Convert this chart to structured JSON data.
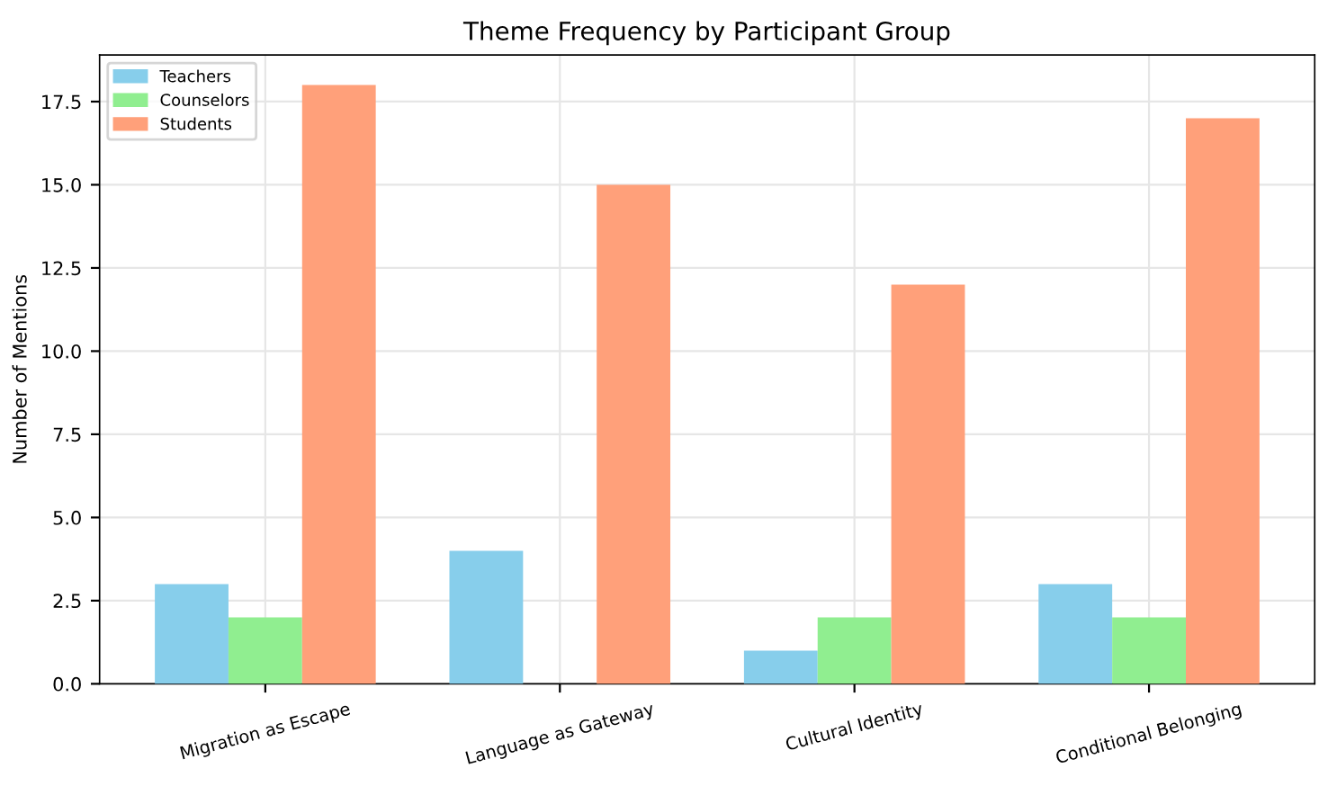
{
  "chart_data": {
    "type": "bar",
    "title": "Theme Frequency by Participant Group",
    "ylabel": "Number of Mentions",
    "categories": [
      "Migration as Escape",
      "Language as Gateway",
      "Cultural Identity",
      "Conditional Belonging"
    ],
    "series": [
      {
        "name": "Teachers",
        "color": "#87ceeb",
        "values": [
          3,
          4,
          1,
          3
        ]
      },
      {
        "name": "Counselors",
        "color": "#90ee90",
        "values": [
          2,
          0,
          2,
          2
        ]
      },
      {
        "name": "Students",
        "color": "#ffa07a",
        "values": [
          18,
          15,
          12,
          17
        ]
      }
    ],
    "ylim": [
      0,
      18.9
    ],
    "yticks": [
      {
        "value": 0,
        "label": "0.0"
      },
      {
        "value": 2.5,
        "label": "2.5"
      },
      {
        "value": 5,
        "label": "5.0"
      },
      {
        "value": 7.5,
        "label": "7.5"
      },
      {
        "value": 10,
        "label": "10.0"
      },
      {
        "value": 12.5,
        "label": "12.5"
      },
      {
        "value": 15,
        "label": "15.0"
      },
      {
        "value": 17.5,
        "label": "17.5"
      }
    ],
    "grid": true,
    "legend": "top left"
  }
}
